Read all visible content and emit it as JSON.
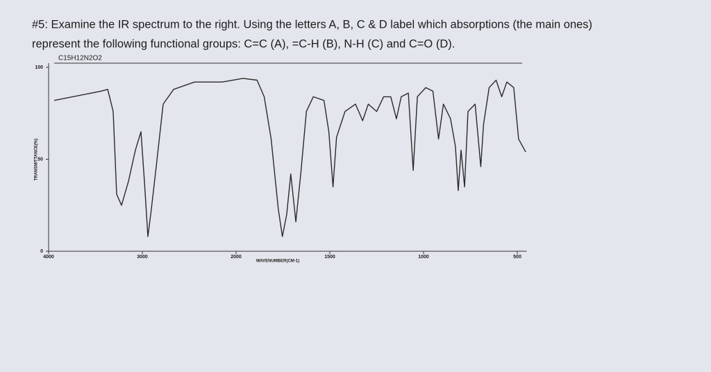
{
  "question": {
    "line1": "#5: Examine the IR spectrum to the right. Using the letters A, B, C & D label which absorptions (the main ones)",
    "line2": "represent the following functional groups: C=C (A), =C-H (B), N-H (C) and C=O (D)."
  },
  "chart_data": {
    "type": "line",
    "title": "C15H12N2O2",
    "x_label": "WAVENUMBER(CM-1)",
    "y_label": "TRANSMITTANCE(%)",
    "x": [
      3941,
      3444,
      3370,
      3311,
      3274,
      3222,
      3148,
      3074,
      3015,
      2978,
      2941,
      2904,
      2852,
      2778,
      2667,
      2444,
      2148,
      1963,
      1888,
      1850,
      1813,
      1775,
      1753,
      1730,
      1708,
      1681,
      1655,
      1625,
      1588,
      1531,
      1505,
      1483,
      1464,
      1419,
      1363,
      1325,
      1295,
      1250,
      1213,
      1175,
      1145,
      1119,
      1081,
      1055,
      1033,
      988,
      950,
      920,
      894,
      856,
      830,
      815,
      800,
      781,
      763,
      725,
      695,
      680,
      650,
      613,
      583,
      556,
      519,
      493,
      455
    ],
    "values": [
      82,
      87,
      88,
      76,
      31,
      25,
      38,
      55,
      65,
      38,
      8,
      23,
      46,
      80,
      88,
      92,
      92,
      94,
      93,
      84,
      61,
      23,
      8,
      20,
      42,
      16,
      42,
      76,
      84,
      82,
      65,
      35,
      62,
      76,
      80,
      71,
      80,
      76,
      84,
      84,
      72,
      84,
      86,
      44,
      84,
      89,
      87,
      61,
      80,
      72,
      57,
      33,
      55,
      35,
      76,
      80,
      46,
      69,
      89,
      93,
      84,
      92,
      89,
      61,
      54
    ],
    "color": "#2a2a2a",
    "xlim": [
      4000,
      450
    ],
    "xticks": [
      4000,
      3000,
      2000,
      1500,
      1000,
      500
    ],
    "ylim": [
      0,
      100
    ],
    "yticks": [
      0,
      50,
      100
    ]
  }
}
